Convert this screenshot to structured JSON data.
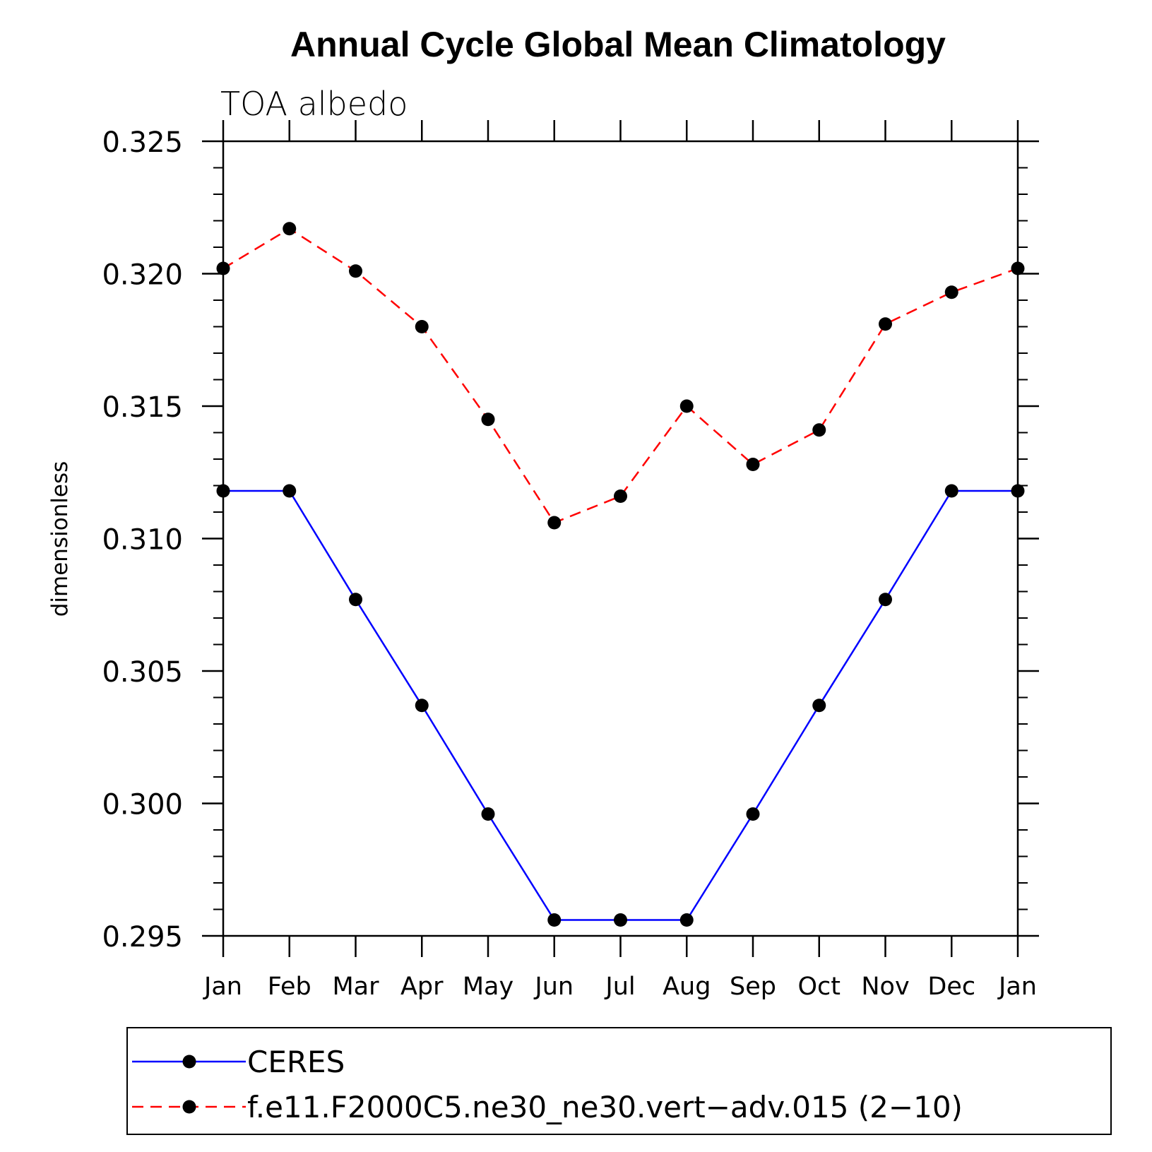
{
  "chart_data": {
    "type": "line",
    "title": "Annual Cycle Global Mean Climatology",
    "subtitle": "TOA albedo",
    "xlabel": "",
    "ylabel": "dimensionless",
    "categories": [
      "Jan",
      "Feb",
      "Mar",
      "Apr",
      "May",
      "Jun",
      "Jul",
      "Aug",
      "Sep",
      "Oct",
      "Nov",
      "Dec",
      "Jan"
    ],
    "ylim": [
      0.295,
      0.325
    ],
    "yticks": [
      "0.295",
      "0.300",
      "0.305",
      "0.310",
      "0.315",
      "0.320",
      "0.325"
    ],
    "ytick_values": [
      0.295,
      0.3,
      0.305,
      0.31,
      0.315,
      0.32,
      0.325
    ],
    "y_minor_step": 0.001,
    "grid": false,
    "legend_position": "bottom",
    "series": [
      {
        "name": "CERES",
        "color": "#0000ff",
        "line_style": "solid",
        "marker": "filled-circle",
        "values": [
          0.3118,
          0.3118,
          0.3077,
          0.3037,
          0.2996,
          0.2956,
          0.2956,
          0.2956,
          0.2996,
          0.3037,
          0.3077,
          0.3118,
          0.3118
        ]
      },
      {
        "name": "f.e11.F2000C5.ne30_ne30.vert−adv.015 (2−10)",
        "color": "#ff0000",
        "line_style": "dashed",
        "marker": "filled-circle",
        "values": [
          0.3202,
          0.3217,
          0.3201,
          0.318,
          0.3145,
          0.3106,
          0.3116,
          0.315,
          0.3128,
          0.3141,
          0.3181,
          0.3193,
          0.3202
        ]
      }
    ],
    "marker_color": "#000000"
  }
}
